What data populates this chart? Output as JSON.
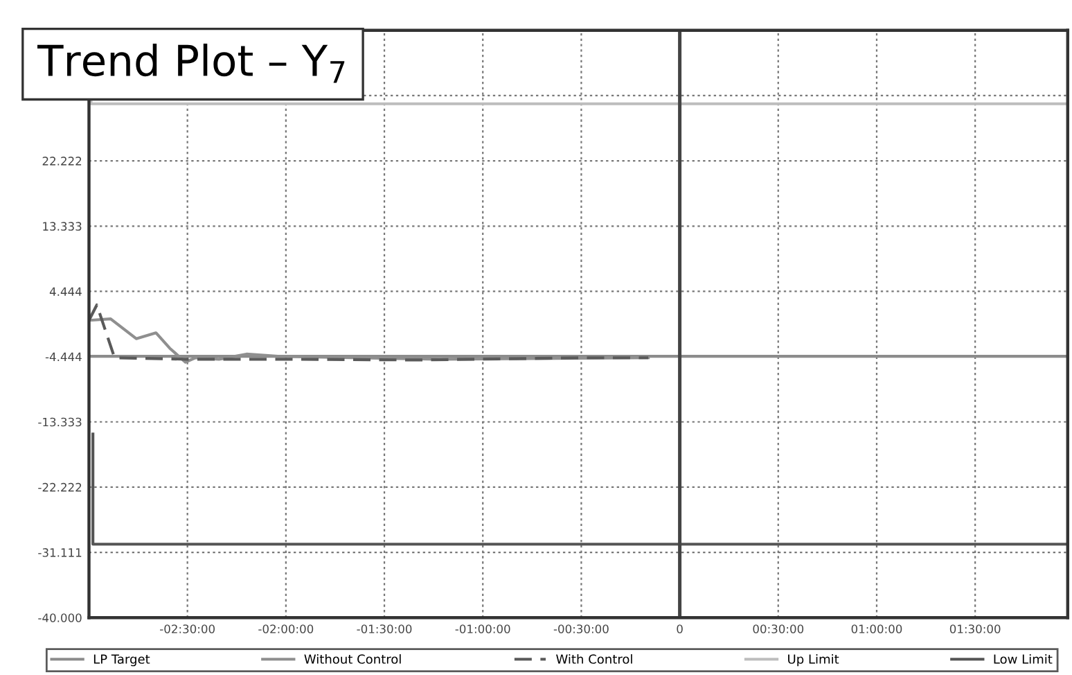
{
  "chart_data": {
    "type": "line",
    "title": "Trend Plot – Y$_{7}$",
    "xlim": [
      -3,
      1.97
    ],
    "ylim": [
      -40,
      40
    ],
    "xticks": [
      {
        "value": -2.5,
        "label": "-02:30:00"
      },
      {
        "value": -2,
        "label": "-02:00:00"
      },
      {
        "value": -1.5,
        "label": "-01:30:00"
      },
      {
        "value": -1,
        "label": "-01:00:00"
      },
      {
        "value": -0.5,
        "label": "-00:30:00"
      },
      {
        "value": 0,
        "label": "0"
      },
      {
        "value": 0.5,
        "label": "00:30:00"
      },
      {
        "value": 1,
        "label": "01:00:00"
      },
      {
        "value": 1.5,
        "label": "01:30:00"
      }
    ],
    "yticks": [
      {
        "value": -40,
        "label": "-40.000"
      },
      {
        "value": -31.111,
        "label": "-31.111"
      },
      {
        "value": -22.222,
        "label": "-22.222"
      },
      {
        "value": -13.333,
        "label": "-13.333"
      },
      {
        "value": -4.444,
        "label": "-4.444"
      },
      {
        "value": 4.444,
        "label": "4.444"
      },
      {
        "value": 13.333,
        "label": "13.333"
      },
      {
        "value": 22.222,
        "label": "22.222"
      },
      {
        "value": 31.111,
        "label": null
      }
    ],
    "grid": true,
    "legend": "bottom",
    "marker": "none",
    "ref_lines": [
      {
        "axis": "x",
        "value": 0,
        "label": null,
        "color": "#444444"
      }
    ],
    "series": [
      {
        "name": "LP Target",
        "color": "#8c8c8c",
        "line_style": "solid",
        "x": [
          -3,
          1.97
        ],
        "values": [
          -4.4,
          -4.4
        ]
      },
      {
        "name": "Without Control",
        "color": "#8f8f8f",
        "line_style": "solid",
        "x": [
          -3.0,
          -2.89,
          -2.76,
          -2.66,
          -2.59,
          -2.51,
          -2.46,
          -2.34,
          -2.2,
          -2.04,
          -1.22,
          -0.16
        ],
        "values": [
          0.5,
          0.7,
          -2.0,
          -1.2,
          -3.3,
          -5.2,
          -4.6,
          -4.8,
          -4.1,
          -4.4,
          -4.8,
          -4.6
        ]
      },
      {
        "name": "With Control",
        "color": "#5a5a5a",
        "line_style": "dashed",
        "x": [
          -3.0,
          -2.96,
          -2.87,
          -2.5,
          -2.0,
          -1.34,
          -0.5,
          -0.16
        ],
        "values": [
          0.5,
          2.6,
          -4.6,
          -4.8,
          -4.8,
          -4.9,
          -4.6,
          -4.6
        ]
      },
      {
        "name": "Up Limit",
        "color": "#bdbdbd",
        "line_style": "solid",
        "x": [
          -2.99,
          -2.99,
          1.97
        ],
        "values": [
          40,
          30,
          30
        ]
      },
      {
        "name": "Low Limit",
        "color": "#555555",
        "line_style": "solid",
        "x": [
          -2.98,
          -2.98,
          1.97
        ],
        "values": [
          -15,
          -30,
          -30
        ]
      }
    ]
  }
}
